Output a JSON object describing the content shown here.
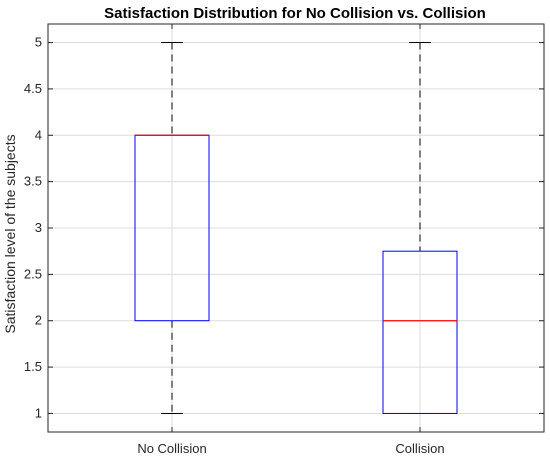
{
  "chart_data": {
    "type": "box",
    "title": "Satisfaction Distribution for No Collision vs. Collision",
    "ylabel": "Satisfaction level of the subjects",
    "xlabel": "",
    "ylim": [
      0.8,
      5.2
    ],
    "yticks": [
      1,
      1.5,
      2,
      2.5,
      3,
      3.5,
      4,
      4.5,
      5
    ],
    "ytick_labels": [
      "1",
      "1.5",
      "2",
      "2.5",
      "3",
      "3.5",
      "4",
      "4.5",
      "5"
    ],
    "categories": [
      "No Collision",
      "Collision"
    ],
    "grid": true,
    "boxes": [
      {
        "category": "No Collision",
        "whisker_low": 1,
        "q1": 2,
        "median": 4,
        "q3": 4,
        "whisker_high": 5
      },
      {
        "category": "Collision",
        "whisker_low": 1,
        "q1": 1,
        "median": 2,
        "q3": 2.75,
        "whisker_high": 5
      }
    ],
    "colors": {
      "box": "#0000ff",
      "median": "#ff0000",
      "whisker": "#000000"
    }
  }
}
